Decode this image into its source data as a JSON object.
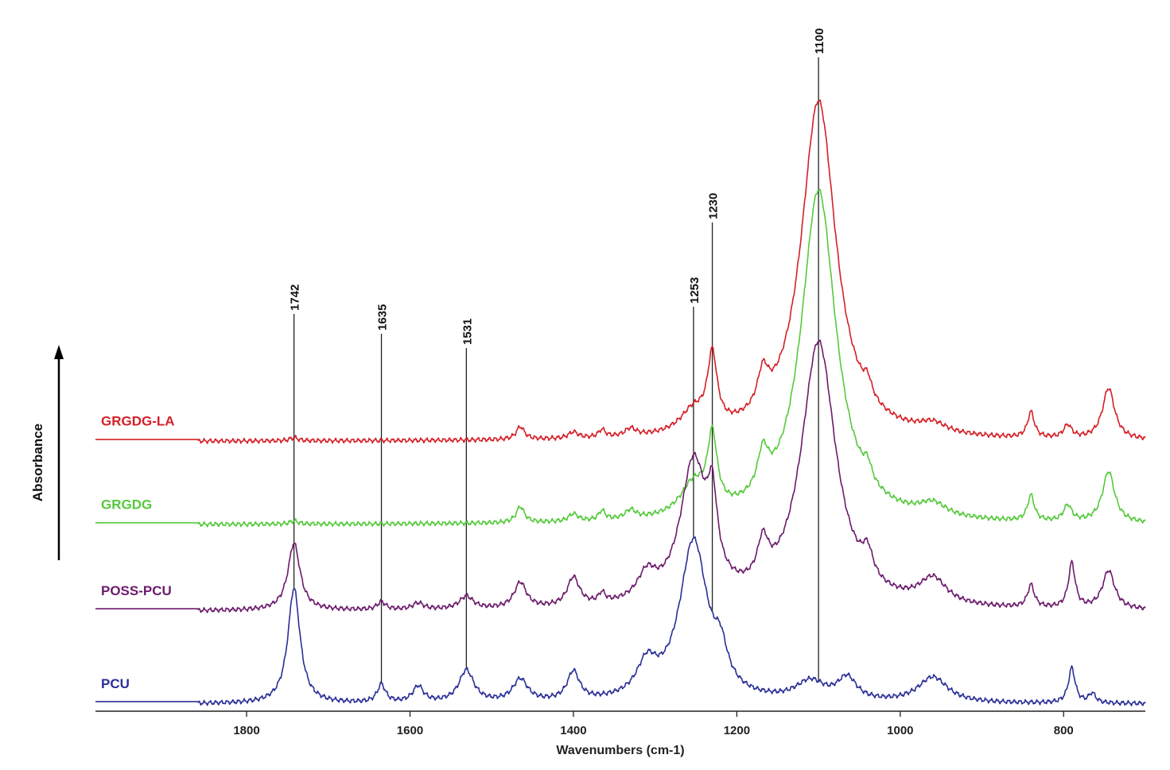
{
  "chart_data": {
    "type": "line",
    "title": "",
    "xlabel": "Wavenumbers (cm-1)",
    "ylabel": "Absorbance",
    "xlim": [
      1985,
      700
    ],
    "x_reversed": true,
    "ylim": [
      0,
      10
    ],
    "grid": false,
    "legend": "inline-left",
    "xticks": [
      1800,
      1600,
      1400,
      1200,
      1000,
      800
    ],
    "xtick_labels": [
      "1800",
      "1600",
      "1400",
      "1200",
      "1000",
      "800"
    ],
    "peak_markers": [
      {
        "x": 1742,
        "label": "1742"
      },
      {
        "x": 1635,
        "label": "1635"
      },
      {
        "x": 1531,
        "label": "1531"
      },
      {
        "x": 1253,
        "label": "1253"
      },
      {
        "x": 1230,
        "label": "1230"
      },
      {
        "x": 1100,
        "label": "1100"
      }
    ],
    "series": [
      {
        "name": "GRGDG-LA",
        "color": "#d42027",
        "baseline": 4.1,
        "peaks": [
          [
            1742,
            0.05,
            6
          ],
          [
            1465,
            0.2,
            6
          ],
          [
            1400,
            0.1,
            7
          ],
          [
            1365,
            0.12,
            5
          ],
          [
            1330,
            0.12,
            8
          ],
          [
            1253,
            0.35,
            20
          ],
          [
            1230,
            1.1,
            7
          ],
          [
            1168,
            0.55,
            8
          ],
          [
            1100,
            5.3,
            26
          ],
          [
            1040,
            0.25,
            6
          ],
          [
            960,
            0.15,
            20
          ],
          [
            840,
            0.4,
            5
          ],
          [
            795,
            0.2,
            6
          ],
          [
            745,
            0.8,
            9
          ]
        ]
      },
      {
        "name": "GRGDG",
        "color": "#55c93c",
        "baseline": 2.8,
        "peaks": [
          [
            1742,
            0.05,
            6
          ],
          [
            1465,
            0.25,
            6
          ],
          [
            1400,
            0.12,
            7
          ],
          [
            1365,
            0.15,
            5
          ],
          [
            1330,
            0.14,
            8
          ],
          [
            1253,
            0.5,
            20
          ],
          [
            1230,
            1.1,
            7
          ],
          [
            1168,
            0.6,
            8
          ],
          [
            1100,
            5.2,
            26
          ],
          [
            1040,
            0.25,
            6
          ],
          [
            960,
            0.2,
            20
          ],
          [
            840,
            0.4,
            5
          ],
          [
            795,
            0.25,
            6
          ],
          [
            745,
            0.8,
            9
          ]
        ]
      },
      {
        "name": "POSS-PCU",
        "color": "#6b1b6b",
        "baseline": 1.45,
        "peaks": [
          [
            1742,
            1.05,
            9
          ],
          [
            1635,
            0.12,
            6
          ],
          [
            1590,
            0.1,
            8
          ],
          [
            1531,
            0.2,
            10
          ],
          [
            1465,
            0.4,
            9
          ],
          [
            1400,
            0.45,
            9
          ],
          [
            1365,
            0.15,
            5
          ],
          [
            1310,
            0.4,
            14
          ],
          [
            1253,
            2.2,
            20
          ],
          [
            1230,
            1.1,
            7
          ],
          [
            1168,
            0.6,
            8
          ],
          [
            1100,
            4.15,
            26
          ],
          [
            1040,
            0.4,
            8
          ],
          [
            960,
            0.4,
            20
          ],
          [
            840,
            0.35,
            5
          ],
          [
            790,
            0.7,
            5
          ],
          [
            745,
            0.6,
            9
          ]
        ]
      },
      {
        "name": "PCU",
        "color": "#2b2f96",
        "baseline": 0.0,
        "peaks": [
          [
            1742,
            1.8,
            9
          ],
          [
            1635,
            0.28,
            6
          ],
          [
            1590,
            0.25,
            8
          ],
          [
            1531,
            0.5,
            11
          ],
          [
            1465,
            0.35,
            11
          ],
          [
            1400,
            0.45,
            9
          ],
          [
            1310,
            0.5,
            15
          ],
          [
            1253,
            2.5,
            21
          ],
          [
            1220,
            0.5,
            10
          ],
          [
            1110,
            0.3,
            22
          ],
          [
            1065,
            0.35,
            14
          ],
          [
            960,
            0.4,
            22
          ],
          [
            790,
            0.55,
            5
          ],
          [
            765,
            0.15,
            5
          ]
        ]
      }
    ]
  }
}
